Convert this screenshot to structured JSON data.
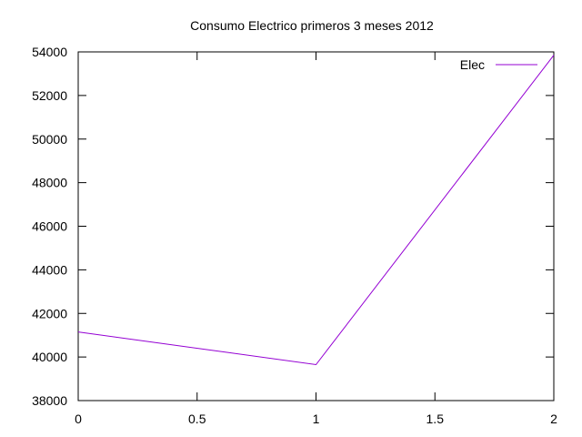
{
  "chart_data": {
    "type": "line",
    "title": "Consumo Electrico primeros 3 meses 2012",
    "xlabel": "",
    "ylabel": "",
    "xlim": [
      0,
      2
    ],
    "ylim": [
      38000,
      54000
    ],
    "x_ticks": [
      "0",
      "0.5",
      "1",
      "1.5",
      "2"
    ],
    "y_ticks": [
      "38000",
      "40000",
      "42000",
      "44000",
      "46000",
      "48000",
      "50000",
      "52000",
      "54000"
    ],
    "grid": false,
    "legend_position": "top-right",
    "series": [
      {
        "name": "Elec",
        "color": "#9400d3",
        "x": [
          0,
          1,
          2
        ],
        "y": [
          41150,
          39650,
          53850
        ]
      }
    ]
  }
}
